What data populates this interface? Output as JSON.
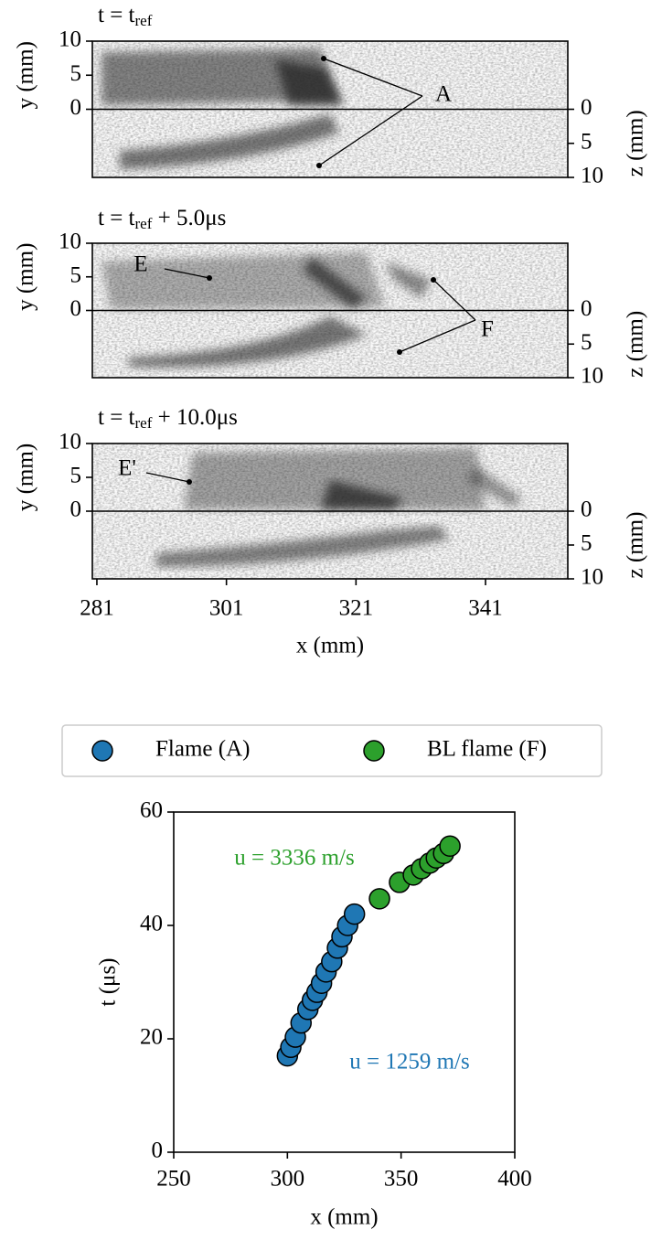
{
  "chart_data": [
    {
      "type": "image",
      "title": [
        "t = t",
        "ref"
      ],
      "xlim": [
        280.3,
        353.7
      ],
      "ylim": [
        -10,
        10
      ],
      "yticks": [
        0,
        5,
        10
      ],
      "y2lim": [
        10,
        -10
      ],
      "y2ticks": [
        0,
        5,
        10
      ],
      "ylabel": "y (mm)",
      "y2label": "z (mm)",
      "annotations": [
        "A"
      ]
    },
    {
      "type": "image",
      "title": [
        "t = t",
        "ref",
        " + 5.0μs"
      ],
      "xlim": [
        280.3,
        353.7
      ],
      "ylim": [
        -10,
        10
      ],
      "yticks": [
        0,
        5,
        10
      ],
      "y2lim": [
        10,
        -10
      ],
      "y2ticks": [
        0,
        5,
        10
      ],
      "ylabel": "y (mm)",
      "y2label": "z (mm)",
      "annotations": [
        "E",
        "F"
      ]
    },
    {
      "type": "image",
      "title": [
        "t = t",
        "ref",
        " + 10.0μs"
      ],
      "xlim": [
        280.3,
        353.7
      ],
      "xticks": [
        281,
        301,
        321,
        341
      ],
      "xlabel": "x (mm)",
      "ylim": [
        -10,
        10
      ],
      "yticks": [
        0,
        5,
        10
      ],
      "y2lim": [
        10,
        -10
      ],
      "y2ticks": [
        0,
        5,
        10
      ],
      "ylabel": "y (mm)",
      "y2label": "z (mm)",
      "annotations": [
        "E'"
      ]
    },
    {
      "type": "scatter",
      "xlim": [
        250,
        400
      ],
      "ylim": [
        0,
        60
      ],
      "xticks": [
        250,
        300,
        350,
        400
      ],
      "yticks": [
        0,
        20,
        40,
        60
      ],
      "xlabel": "x (mm)",
      "ylabel": "t (μs)",
      "legend": "top",
      "series": [
        {
          "name": "Flame (A)",
          "color": "#1f77b4",
          "x": [
            300,
            301.5,
            303.5,
            306,
            309,
            311,
            313,
            315,
            317,
            319.5,
            322,
            324,
            326.5,
            329.5
          ],
          "values": [
            17,
            18.5,
            20.3,
            22.8,
            25.2,
            26.8,
            28.2,
            29.8,
            31.8,
            33.6,
            36,
            38,
            40,
            42
          ]
        },
        {
          "name": "BL flame (F)",
          "color": "#2ca02c",
          "x": [
            340.5,
            349.3,
            355.4,
            359,
            362.6,
            365.5,
            368.7,
            371.5
          ],
          "values": [
            44.7,
            47.6,
            48.9,
            50,
            51,
            51.9,
            52.7,
            54
          ]
        }
      ],
      "annotations": [
        {
          "text": "u = 3336 m/s",
          "color": "#2ca02c"
        },
        {
          "text": "u = 1259 m/s",
          "color": "#1f77b4"
        }
      ]
    }
  ]
}
